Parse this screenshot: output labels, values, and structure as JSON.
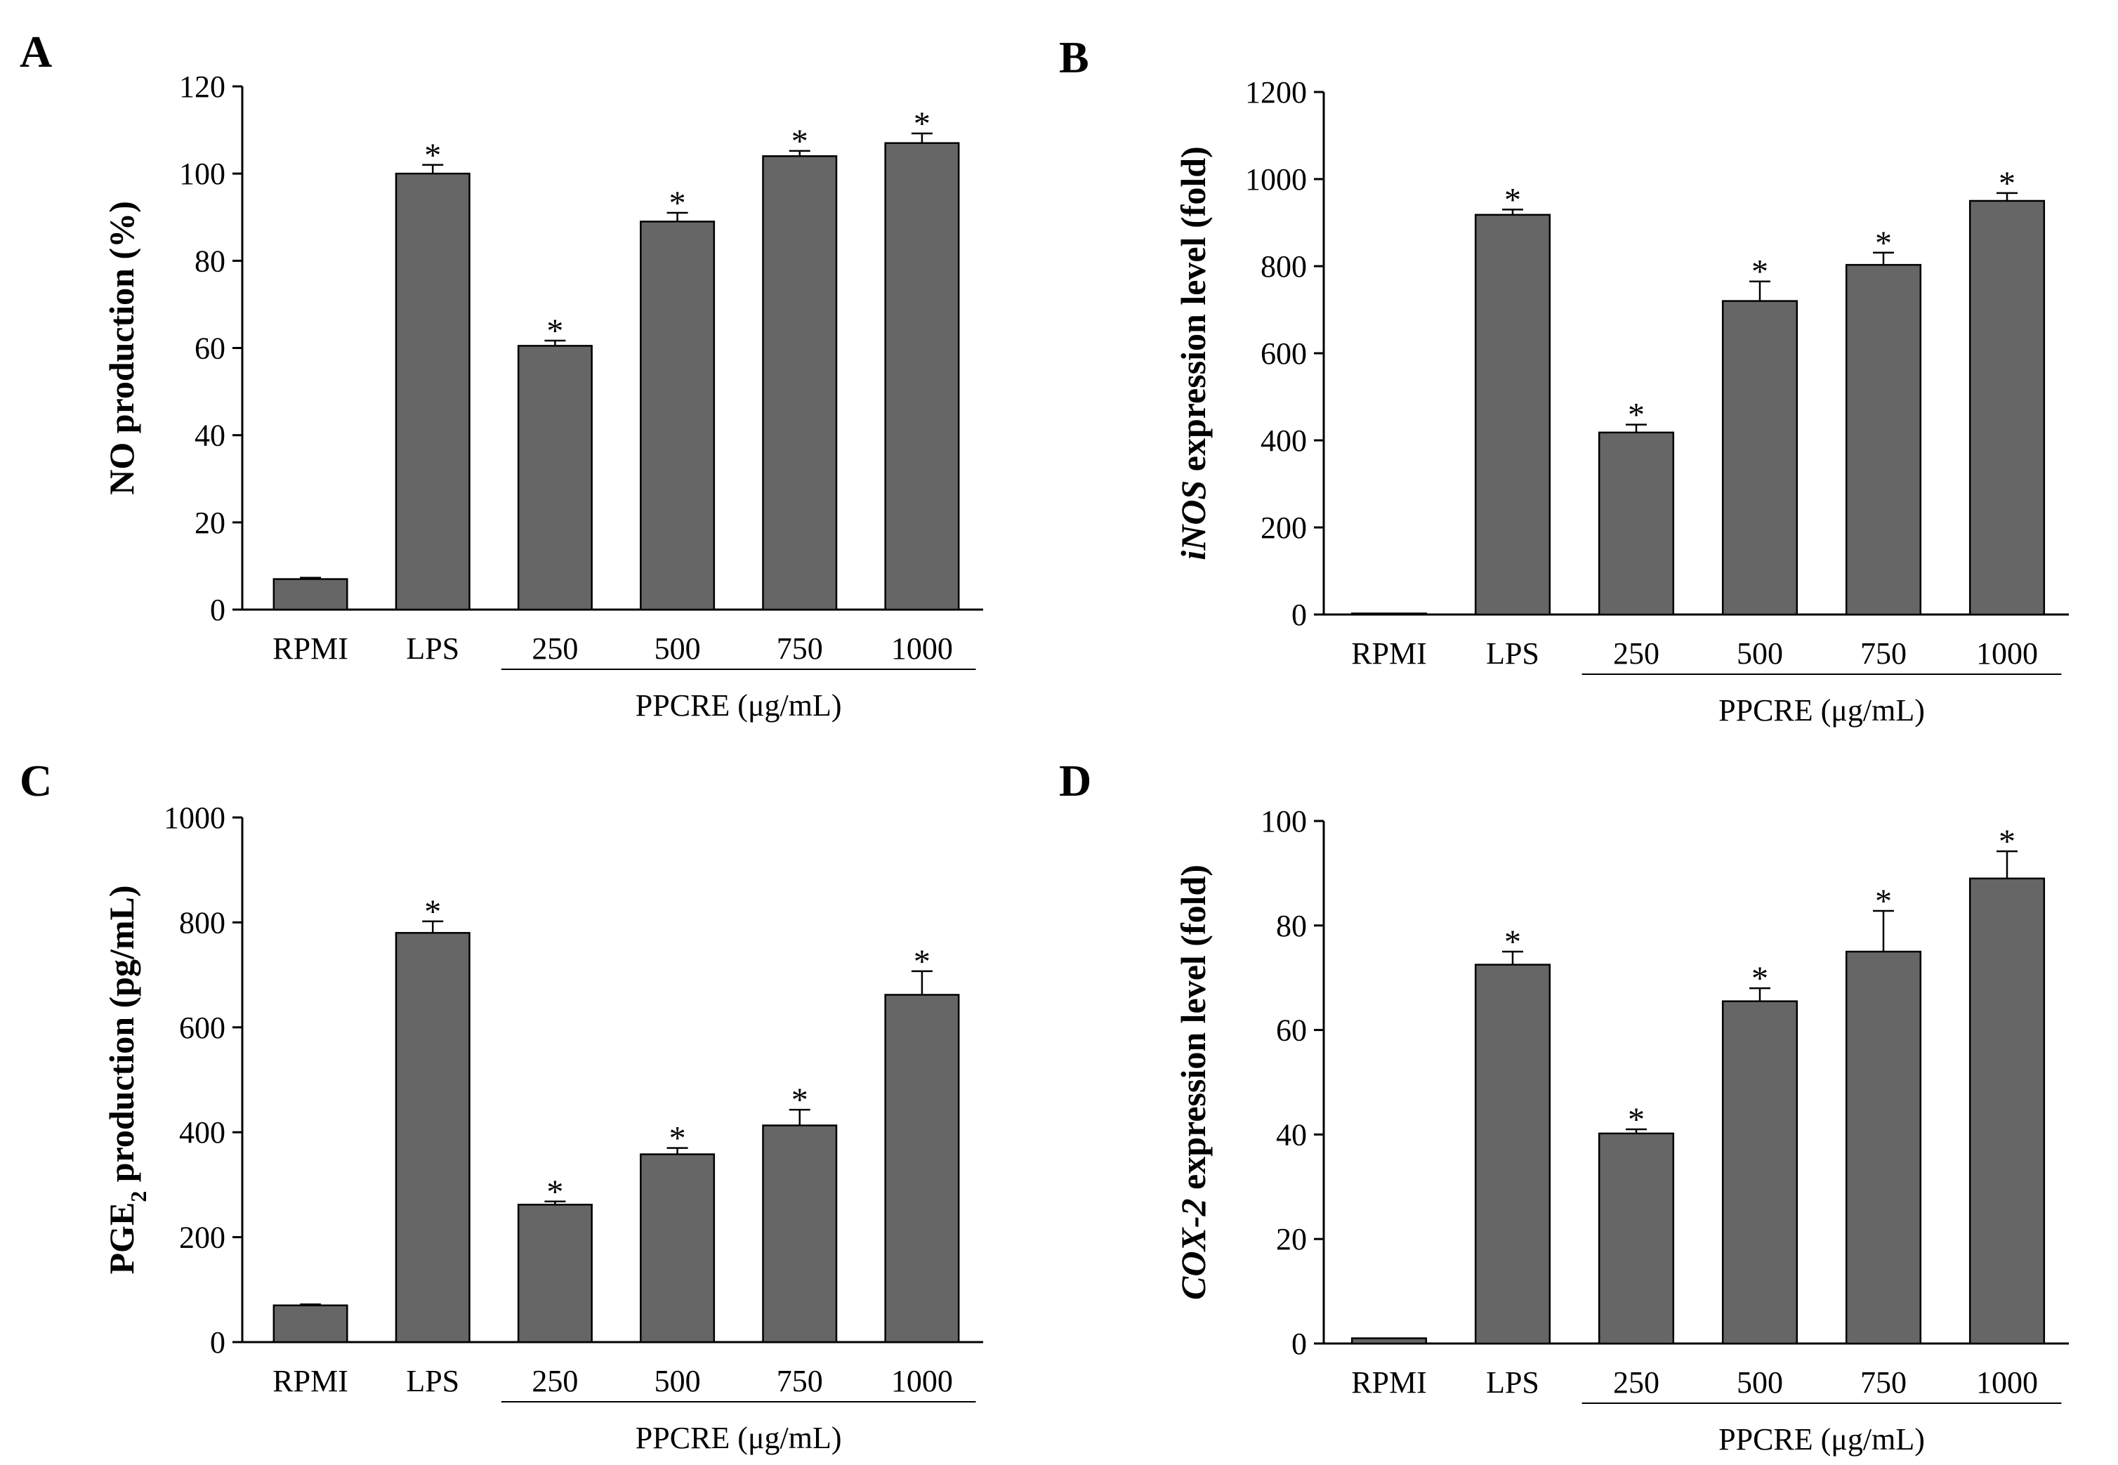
{
  "chart_data": [
    {
      "type": "bar",
      "panel": "A",
      "title": "",
      "xlabel": "PPCRE (μg/mL)",
      "ylabel": "NO production (%)",
      "ylabel_parts": [
        {
          "text": "NO production (%)",
          "italic": false,
          "sub": false
        }
      ],
      "ylim": [
        0,
        120
      ],
      "yticks": [
        0,
        20,
        40,
        60,
        80,
        100,
        120
      ],
      "categories": [
        "RPMI",
        "LPS",
        "250",
        "500",
        "750",
        "1000"
      ],
      "values": [
        7,
        100,
        60.5,
        89,
        104,
        107
      ],
      "errors": [
        0.3,
        2,
        1.2,
        2,
        1.2,
        2.2
      ],
      "significance": [
        "",
        "*",
        "*",
        "*",
        "*",
        "*"
      ],
      "group": {
        "label": "PPCRE (μg/mL)",
        "from": 2,
        "to": 5
      },
      "bar_color": "#666666"
    },
    {
      "type": "bar",
      "panel": "B",
      "title": "",
      "xlabel": "PPCRE (μg/mL)",
      "ylabel": "iNOS expression level (fold)",
      "ylabel_parts": [
        {
          "text": "iNOS",
          "italic": true,
          "sub": false
        },
        {
          "text": " expression level (fold)",
          "italic": false,
          "sub": false
        }
      ],
      "ylim": [
        0,
        1200
      ],
      "yticks": [
        0,
        200,
        400,
        600,
        800,
        1000,
        1200
      ],
      "categories": [
        "RPMI",
        "LPS",
        "250",
        "500",
        "750",
        "1000"
      ],
      "values": [
        1,
        918,
        418,
        720,
        803,
        950
      ],
      "errors": [
        0,
        12,
        18,
        45,
        28,
        18
      ],
      "significance": [
        "",
        "*",
        "*",
        "*",
        "*",
        "*"
      ],
      "group": {
        "label": "PPCRE (μg/mL)",
        "from": 2,
        "to": 5
      },
      "bar_color": "#666666"
    },
    {
      "type": "bar",
      "panel": "C",
      "title": "",
      "xlabel": "PPCRE (μg/mL)",
      "ylabel": "PGE2 production (pg/mL)",
      "ylabel_parts": [
        {
          "text": "PGE",
          "italic": false,
          "sub": false
        },
        {
          "text": "2",
          "italic": false,
          "sub": true
        },
        {
          "text": " production (pg/mL)",
          "italic": false,
          "sub": false
        }
      ],
      "ylim": [
        0,
        1000
      ],
      "yticks": [
        0,
        200,
        400,
        600,
        800,
        1000
      ],
      "categories": [
        "RPMI",
        "LPS",
        "250",
        "500",
        "750",
        "1000"
      ],
      "values": [
        70,
        780,
        262,
        358,
        413,
        662
      ],
      "errors": [
        2,
        22,
        6,
        12,
        30,
        45
      ],
      "significance": [
        "",
        "*",
        "*",
        "*",
        "*",
        "*"
      ],
      "group": {
        "label": "PPCRE (μg/mL)",
        "from": 2,
        "to": 5
      },
      "bar_color": "#666666"
    },
    {
      "type": "bar",
      "panel": "D",
      "title": "",
      "xlabel": "PPCRE (μg/mL)",
      "ylabel": "COX-2 expression level (fold)",
      "ylabel_parts": [
        {
          "text": "COX-2",
          "italic": true,
          "sub": false
        },
        {
          "text": " expression level (fold)",
          "italic": false,
          "sub": false
        }
      ],
      "ylim": [
        0,
        100
      ],
      "yticks": [
        0,
        20,
        40,
        60,
        80,
        100
      ],
      "categories": [
        "RPMI",
        "LPS",
        "250",
        "500",
        "750",
        "1000"
      ],
      "values": [
        1,
        72.5,
        40.2,
        65.5,
        75,
        89
      ],
      "errors": [
        0,
        2.5,
        0.8,
        2.5,
        7.8,
        5.2
      ],
      "significance": [
        "",
        "*",
        "*",
        "*",
        "*",
        "*"
      ],
      "group": {
        "label": "PPCRE (μg/mL)",
        "from": 2,
        "to": 5
      },
      "bar_color": "#666666"
    }
  ]
}
